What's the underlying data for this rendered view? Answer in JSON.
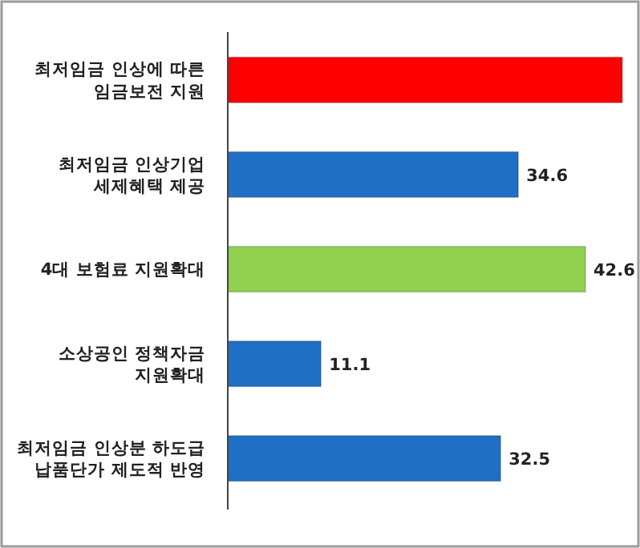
{
  "chart_data": {
    "type": "bar",
    "orientation": "horizontal",
    "categories": [
      "최저임금 인상에 따른\n임금보전 지원",
      "최저임금 인상기업\n세제혜택 제공",
      "4대 보험료 지원확대",
      "소상공인 정책자금\n지원확대",
      "최저임금 인상분 하도급\n납품단가 제도적 반영"
    ],
    "values": [
      47,
      34.6,
      42.6,
      11.1,
      32.5
    ],
    "colors": [
      "#ff0000",
      "#1f6fc5",
      "#92d050",
      "#1f6fc5",
      "#1f6fc5"
    ],
    "value_labels": [
      null,
      "34.6",
      "42.6",
      "11.1",
      "32.5"
    ]
  }
}
